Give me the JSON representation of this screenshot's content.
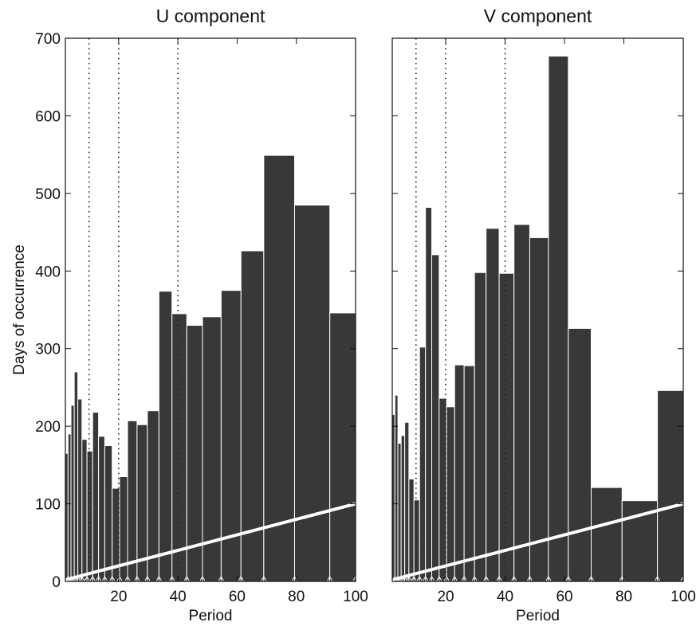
{
  "chart_data": [
    {
      "type": "bar",
      "title": "U component",
      "xlabel": "Period",
      "ylabel": "Days of occurrence",
      "xlim": [
        2,
        100
      ],
      "ylim": [
        0,
        700
      ],
      "xticks": [
        20,
        40,
        60,
        80,
        100
      ],
      "yticks": [
        0,
        100,
        200,
        300,
        400,
        500,
        600,
        700
      ],
      "reference_lines": [
        10,
        20,
        40
      ],
      "diagonal_line": {
        "from": [
          2,
          2
        ],
        "to": [
          100,
          100
        ]
      },
      "grid": false,
      "bar_color": "#383838",
      "bins": [
        {
          "x0": 2.0,
          "x1": 2.9,
          "value": 165
        },
        {
          "x0": 2.9,
          "x1": 3.9,
          "value": 190
        },
        {
          "x0": 3.9,
          "x1": 5.0,
          "value": 227
        },
        {
          "x0": 5.0,
          "x1": 6.2,
          "value": 270
        },
        {
          "x0": 6.2,
          "x1": 7.6,
          "value": 235
        },
        {
          "x0": 7.6,
          "x1": 9.3,
          "value": 183
        },
        {
          "x0": 9.3,
          "x1": 11.2,
          "value": 168
        },
        {
          "x0": 11.2,
          "x1": 13.2,
          "value": 218
        },
        {
          "x0": 13.2,
          "x1": 15.3,
          "value": 187
        },
        {
          "x0": 15.3,
          "x1": 17.8,
          "value": 175
        },
        {
          "x0": 17.8,
          "x1": 20.3,
          "value": 120
        },
        {
          "x0": 20.3,
          "x1": 23.0,
          "value": 135
        },
        {
          "x0": 23.0,
          "x1": 26.2,
          "value": 207
        },
        {
          "x0": 26.2,
          "x1": 29.7,
          "value": 202
        },
        {
          "x0": 29.7,
          "x1": 33.6,
          "value": 220
        },
        {
          "x0": 33.6,
          "x1": 38.0,
          "value": 374
        },
        {
          "x0": 38.0,
          "x1": 43.0,
          "value": 345
        },
        {
          "x0": 43.0,
          "x1": 48.3,
          "value": 330
        },
        {
          "x0": 48.3,
          "x1": 54.6,
          "value": 341
        },
        {
          "x0": 54.6,
          "x1": 61.3,
          "value": 375
        },
        {
          "x0": 61.3,
          "x1": 69.0,
          "value": 426
        },
        {
          "x0": 69.0,
          "x1": 79.4,
          "value": 549
        },
        {
          "x0": 79.4,
          "x1": 91.3,
          "value": 485
        },
        {
          "x0": 91.3,
          "x1": 100.0,
          "value": 346
        }
      ]
    },
    {
      "type": "bar",
      "title": "V component",
      "xlabel": "Period",
      "xlim": [
        2,
        100
      ],
      "ylim": [
        0,
        700
      ],
      "xticks": [
        20,
        40,
        60,
        80,
        100
      ],
      "yticks": [
        0,
        100,
        200,
        300,
        400,
        500,
        600,
        700
      ],
      "reference_lines": [
        10,
        20,
        40
      ],
      "diagonal_line": {
        "from": [
          2,
          2
        ],
        "to": [
          100,
          100
        ]
      },
      "grid": false,
      "bar_color": "#383838",
      "bins": [
        {
          "x0": 2.0,
          "x1": 2.9,
          "value": 215
        },
        {
          "x0": 2.9,
          "x1": 3.9,
          "value": 240
        },
        {
          "x0": 3.9,
          "x1": 5.0,
          "value": 178
        },
        {
          "x0": 5.0,
          "x1": 6.2,
          "value": 188
        },
        {
          "x0": 6.2,
          "x1": 7.6,
          "value": 205
        },
        {
          "x0": 7.6,
          "x1": 9.3,
          "value": 132
        },
        {
          "x0": 9.3,
          "x1": 11.2,
          "value": 105
        },
        {
          "x0": 11.2,
          "x1": 13.2,
          "value": 302
        },
        {
          "x0": 13.2,
          "x1": 15.3,
          "value": 482
        },
        {
          "x0": 15.3,
          "x1": 17.8,
          "value": 421
        },
        {
          "x0": 17.8,
          "x1": 20.3,
          "value": 236
        },
        {
          "x0": 20.3,
          "x1": 23.0,
          "value": 225
        },
        {
          "x0": 23.0,
          "x1": 26.2,
          "value": 279
        },
        {
          "x0": 26.2,
          "x1": 29.7,
          "value": 278
        },
        {
          "x0": 29.7,
          "x1": 33.6,
          "value": 398
        },
        {
          "x0": 33.6,
          "x1": 38.0,
          "value": 455
        },
        {
          "x0": 38.0,
          "x1": 43.0,
          "value": 397
        },
        {
          "x0": 43.0,
          "x1": 48.3,
          "value": 460
        },
        {
          "x0": 48.3,
          "x1": 54.6,
          "value": 443
        },
        {
          "x0": 54.6,
          "x1": 61.3,
          "value": 677
        },
        {
          "x0": 61.3,
          "x1": 69.0,
          "value": 326
        },
        {
          "x0": 69.0,
          "x1": 79.4,
          "value": 121
        },
        {
          "x0": 79.4,
          "x1": 91.3,
          "value": 104
        },
        {
          "x0": 91.3,
          "x1": 100.0,
          "value": 246
        }
      ]
    }
  ]
}
